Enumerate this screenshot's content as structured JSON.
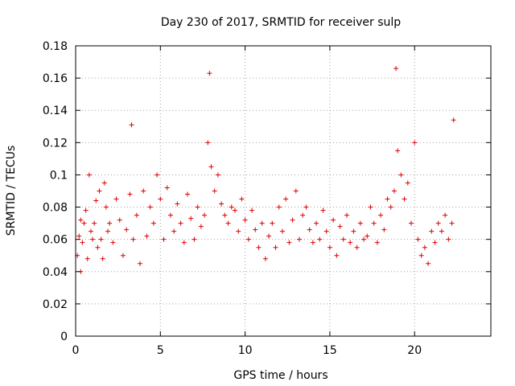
{
  "chart_data": {
    "type": "scatter",
    "title": "Day 230 of 2017, SRMTID for receiver sulp",
    "xlabel": "GPS time / hours",
    "ylabel": "SRMTID / TECUs",
    "xlim": [
      0,
      24.5
    ],
    "ylim": [
      0,
      0.18
    ],
    "xticks": [
      0,
      5,
      10,
      15,
      20
    ],
    "xtick_labels": [
      "0",
      "5",
      "10",
      "15",
      "20"
    ],
    "yticks": [
      0,
      0.02,
      0.04,
      0.06,
      0.08,
      0.1,
      0.12,
      0.14,
      0.16,
      0.18
    ],
    "ytick_labels": [
      "0",
      "0.02",
      "0.04",
      "0.06",
      "0.08",
      "0.1",
      "0.12",
      "0.14",
      "0.16",
      "0.18"
    ],
    "grid": true,
    "marker": "plus",
    "color": "#e00000",
    "series": [
      {
        "x": [
          0.1,
          0.2,
          0.3,
          0.3,
          0.4,
          0.5,
          0.6,
          0.7,
          0.8,
          0.9,
          1.0,
          1.1,
          1.2,
          1.3,
          1.4,
          1.5,
          1.6,
          1.7,
          1.8,
          1.9,
          2.0,
          2.2,
          2.4,
          2.6,
          2.8,
          3.0,
          3.2,
          3.3,
          3.4,
          3.6,
          3.8,
          4.0,
          4.2,
          4.4,
          4.6,
          4.8,
          5.0,
          5.2,
          5.4,
          5.6,
          5.8,
          6.0,
          6.2,
          6.4,
          6.6,
          6.8,
          7.0,
          7.2,
          7.4,
          7.6,
          7.8,
          7.9,
          8.0,
          8.2,
          8.4,
          8.6,
          8.8,
          9.0,
          9.2,
          9.4,
          9.6,
          9.8,
          10.0,
          10.2,
          10.4,
          10.6,
          10.8,
          11.0,
          11.2,
          11.4,
          11.6,
          11.8,
          12.0,
          12.2,
          12.4,
          12.6,
          12.8,
          13.0,
          13.2,
          13.4,
          13.6,
          13.8,
          14.0,
          14.2,
          14.4,
          14.6,
          14.8,
          15.0,
          15.2,
          15.4,
          15.6,
          15.8,
          16.0,
          16.2,
          16.4,
          16.6,
          16.8,
          17.0,
          17.2,
          17.4,
          17.6,
          17.8,
          18.0,
          18.2,
          18.4,
          18.6,
          18.8,
          18.9,
          19.0,
          19.2,
          19.4,
          19.6,
          19.8,
          20.0,
          20.2,
          20.4,
          20.6,
          20.8,
          21.0,
          21.2,
          21.4,
          21.6,
          21.8,
          22.0,
          22.2,
          22.3
        ],
        "y": [
          0.05,
          0.062,
          0.04,
          0.072,
          0.058,
          0.07,
          0.078,
          0.048,
          0.1,
          0.065,
          0.06,
          0.07,
          0.084,
          0.055,
          0.09,
          0.06,
          0.048,
          0.095,
          0.08,
          0.065,
          0.07,
          0.058,
          0.085,
          0.072,
          0.05,
          0.066,
          0.088,
          0.131,
          0.06,
          0.075,
          0.045,
          0.09,
          0.062,
          0.08,
          0.07,
          0.1,
          0.085,
          0.06,
          0.092,
          0.075,
          0.065,
          0.082,
          0.07,
          0.058,
          0.088,
          0.073,
          0.06,
          0.08,
          0.068,
          0.075,
          0.12,
          0.163,
          0.105,
          0.09,
          0.1,
          0.082,
          0.075,
          0.07,
          0.08,
          0.078,
          0.065,
          0.085,
          0.072,
          0.06,
          0.078,
          0.066,
          0.055,
          0.07,
          0.048,
          0.062,
          0.07,
          0.055,
          0.08,
          0.065,
          0.085,
          0.058,
          0.072,
          0.09,
          0.06,
          0.075,
          0.08,
          0.066,
          0.058,
          0.07,
          0.06,
          0.078,
          0.065,
          0.055,
          0.072,
          0.05,
          0.068,
          0.06,
          0.075,
          0.058,
          0.065,
          0.055,
          0.07,
          0.06,
          0.062,
          0.08,
          0.07,
          0.058,
          0.075,
          0.066,
          0.085,
          0.08,
          0.09,
          0.166,
          0.115,
          0.1,
          0.085,
          0.095,
          0.07,
          0.12,
          0.06,
          0.05,
          0.055,
          0.045,
          0.065,
          0.058,
          0.07,
          0.065,
          0.075,
          0.06,
          0.07,
          0.134
        ]
      }
    ]
  }
}
